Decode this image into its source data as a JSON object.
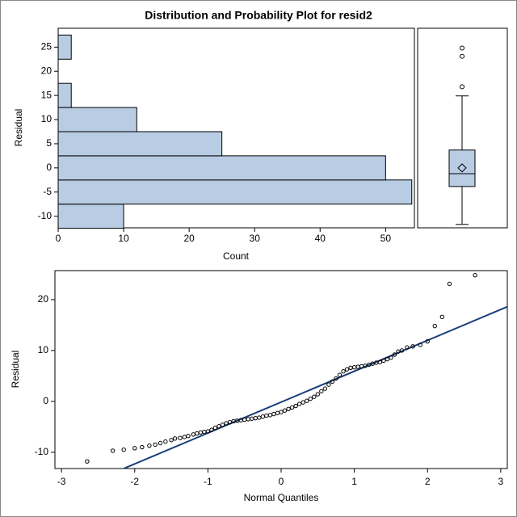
{
  "chart_data": [
    {
      "type": "histogram",
      "title": "Distribution and Probability Plot for resid2",
      "orientation": "horizontal",
      "bins": [
        -12.5,
        -7.5,
        -2.5,
        2.5,
        7.5,
        12.5,
        17.5,
        22.5,
        27.5
      ],
      "values": [
        10,
        54,
        50,
        25,
        12,
        2,
        0,
        2
      ],
      "color": "#b8cce4",
      "xlabel": "Count",
      "ylabel": "Residual",
      "xlim": [
        0,
        54.4
      ],
      "xticks": [
        0,
        10,
        20,
        30,
        40,
        50
      ],
      "ylim": [
        -12.4,
        28.9
      ],
      "yticks": [
        -10,
        -5,
        0,
        5,
        10,
        15,
        20,
        25
      ]
    },
    {
      "type": "box",
      "color": "#b8cce4",
      "ylim": [
        -12.4,
        28.9
      ],
      "whisker_low": -11.7,
      "q1": -3.85,
      "median": -1.2,
      "q3": 3.7,
      "whisker_high": 14.9,
      "mean": 0,
      "outliers": [
        16.8,
        23.1,
        24.8
      ]
    },
    {
      "type": "scatter",
      "xlabel": "Normal Quantiles",
      "ylabel": "Residual",
      "xlim": [
        -3.09,
        3.09
      ],
      "xticks": [
        -3,
        -2,
        -1,
        0,
        1,
        2,
        3
      ],
      "ylim": [
        -13.2,
        25.7
      ],
      "yticks": [
        -10,
        0,
        10,
        20
      ],
      "line": {
        "intercept": -0.15,
        "slope": 6.07,
        "color": "#1a3f7a"
      },
      "x": [
        -2.65,
        -2.3,
        -2.15,
        -2.0,
        -1.9,
        -1.8,
        -1.72,
        -1.65,
        -1.58,
        -1.5,
        -1.45,
        -1.38,
        -1.32,
        -1.27,
        -1.2,
        -1.15,
        -1.1,
        -1.05,
        -1.0,
        -0.95,
        -0.9,
        -0.85,
        -0.8,
        -0.75,
        -0.7,
        -0.65,
        -0.6,
        -0.55,
        -0.5,
        -0.45,
        -0.4,
        -0.35,
        -0.3,
        -0.25,
        -0.2,
        -0.15,
        -0.1,
        -0.05,
        0,
        0.05,
        0.1,
        0.15,
        0.2,
        0.25,
        0.3,
        0.35,
        0.4,
        0.45,
        0.5,
        0.55,
        0.6,
        0.65,
        0.7,
        0.75,
        0.8,
        0.85,
        0.9,
        0.95,
        1.0,
        1.05,
        1.1,
        1.15,
        1.2,
        1.25,
        1.3,
        1.35,
        1.4,
        1.45,
        1.5,
        1.55,
        1.6,
        1.65,
        1.72,
        1.8,
        1.9,
        2.0,
        2.1,
        2.2,
        2.3,
        2.65
      ],
      "y": [
        -11.8,
        -9.7,
        -9.5,
        -9.2,
        -9.0,
        -8.7,
        -8.5,
        -8.2,
        -7.9,
        -7.6,
        -7.3,
        -7.2,
        -7.0,
        -6.8,
        -6.5,
        -6.3,
        -6.1,
        -6.0,
        -5.9,
        -5.6,
        -5.2,
        -4.9,
        -4.6,
        -4.3,
        -4.1,
        -3.9,
        -3.8,
        -3.7,
        -3.6,
        -3.5,
        -3.4,
        -3.3,
        -3.2,
        -3.0,
        -2.8,
        -2.7,
        -2.5,
        -2.3,
        -2.1,
        -1.8,
        -1.5,
        -1.2,
        -0.9,
        -0.5,
        -0.2,
        0.1,
        0.5,
        0.9,
        1.4,
        2.0,
        2.5,
        3.3,
        3.9,
        4.5,
        5.2,
        5.9,
        6.3,
        6.6,
        6.7,
        6.8,
        6.9,
        7.0,
        7.2,
        7.4,
        7.6,
        7.7,
        8.0,
        8.3,
        8.6,
        9.2,
        9.8,
        10.0,
        10.6,
        10.8,
        11.1,
        11.8,
        14.8,
        16.6,
        23.1,
        24.8
      ]
    }
  ]
}
